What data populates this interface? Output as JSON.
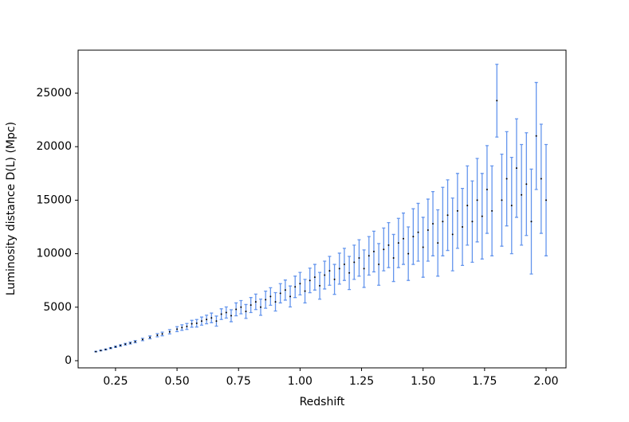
{
  "chart_data": {
    "type": "errorbar-scatter",
    "xlabel": "Redshift",
    "ylabel": "Luminosity distance D(L) (Mpc)",
    "xlim": [
      0.098,
      2.081
    ],
    "ylim": [
      -670,
      29020
    ],
    "xticks": [
      0.25,
      {
        "value": 0.5,
        "label": "0.50"
      },
      0.75,
      {
        "value": 1,
        "label": "1.00"
      },
      1.25,
      {
        "value": 1.5,
        "label": "1.50"
      },
      1.75,
      {
        "value": 2,
        "label": "2.00"
      }
    ],
    "yticks": [
      0,
      5000,
      10000,
      15000,
      20000,
      25000
    ],
    "series": [
      {
        "color": "#000000",
        "error_color": "#6495ed",
        "x": [
          0.17,
          0.19,
          0.21,
          0.23,
          0.25,
          0.27,
          0.29,
          0.31,
          0.33,
          0.36,
          0.39,
          0.42,
          0.44,
          0.47,
          0.5,
          0.52,
          0.54,
          0.56,
          0.58,
          0.6,
          0.62,
          0.64,
          0.66,
          0.68,
          0.7,
          0.72,
          0.74,
          0.76,
          0.78,
          0.8,
          0.82,
          0.84,
          0.86,
          0.88,
          0.9,
          0.92,
          0.94,
          0.96,
          0.98,
          1.0,
          1.02,
          1.04,
          1.06,
          1.08,
          1.1,
          1.12,
          1.14,
          1.16,
          1.18,
          1.2,
          1.22,
          1.24,
          1.26,
          1.28,
          1.3,
          1.32,
          1.34,
          1.36,
          1.38,
          1.4,
          1.42,
          1.44,
          1.46,
          1.48,
          1.5,
          1.52,
          1.54,
          1.56,
          1.58,
          1.6,
          1.62,
          1.64,
          1.66,
          1.68,
          1.7,
          1.72,
          1.74,
          1.76,
          1.78,
          1.8,
          1.82,
          1.84,
          1.86,
          1.88,
          1.9,
          1.92,
          1.94,
          1.96,
          1.98,
          2.0
        ],
        "values": [
          850,
          950,
          1050,
          1180,
          1300,
          1420,
          1540,
          1650,
          1780,
          1980,
          2180,
          2380,
          2500,
          2700,
          2950,
          3100,
          3200,
          3450,
          3500,
          3700,
          3850,
          4000,
          3700,
          4350,
          4500,
          4200,
          4800,
          5000,
          4600,
          5200,
          5500,
          5000,
          5700,
          6000,
          5500,
          6300,
          6600,
          6000,
          6900,
          7200,
          6500,
          7500,
          7800,
          7000,
          8000,
          8400,
          7600,
          8600,
          9000,
          8200,
          9200,
          9600,
          8600,
          9800,
          10200,
          9000,
          10400,
          10800,
          9600,
          11000,
          11400,
          10000,
          11600,
          12000,
          10600,
          12200,
          12800,
          11000,
          13000,
          13600,
          11800,
          14000,
          12500,
          14500,
          13000,
          15000,
          13500,
          16000,
          14000,
          24300,
          15000,
          17000,
          14500,
          18000,
          15500,
          16500,
          13000,
          21000,
          17000,
          15000
        ],
        "errors": [
          20,
          30,
          40,
          50,
          60,
          70,
          80,
          90,
          100,
          110,
          130,
          150,
          170,
          200,
          230,
          260,
          280,
          320,
          350,
          380,
          400,
          450,
          470,
          500,
          520,
          560,
          600,
          620,
          650,
          700,
          720,
          760,
          800,
          820,
          860,
          900,
          940,
          980,
          1000,
          1050,
          1100,
          1150,
          1200,
          1250,
          1300,
          1350,
          1400,
          1450,
          1500,
          1550,
          1600,
          1700,
          1750,
          1800,
          1900,
          1950,
          2000,
          2100,
          2200,
          2300,
          2400,
          2500,
          2600,
          2700,
          2800,
          2900,
          3000,
          3100,
          3200,
          3300,
          3400,
          3500,
          3600,
          3700,
          3800,
          3900,
          4000,
          4100,
          4200,
          3400,
          4300,
          4400,
          4500,
          4600,
          4700,
          4800,
          4900,
          5000,
          5100,
          5200
        ]
      }
    ]
  }
}
